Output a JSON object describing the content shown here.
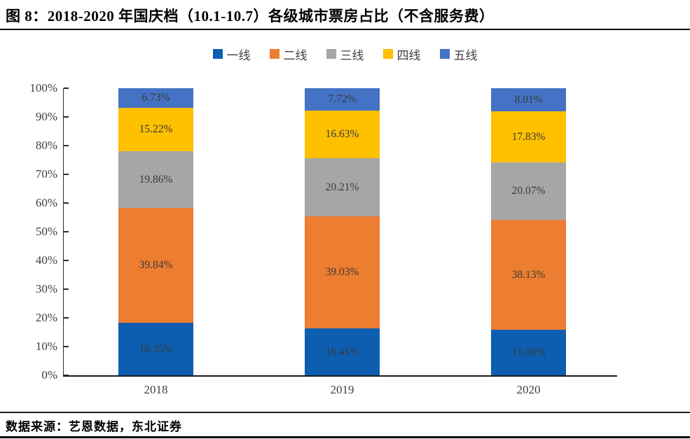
{
  "figure": {
    "title": "图 8：2018-2020 年国庆档（10.1-10.7）各级城市票房占比（不含服务费）",
    "source": "数据来源：艺恩数据，东北证券"
  },
  "chart_data": {
    "type": "bar",
    "stacked": true,
    "title": "2018-2020 年国庆档（10.1-10.7）各级城市票房占比（不含服务费）",
    "categories": [
      "2018",
      "2019",
      "2020"
    ],
    "series": [
      {
        "name": "一线",
        "color": "#0d5eb0",
        "values": [
          18.35,
          16.41,
          15.96
        ]
      },
      {
        "name": "二线",
        "color": "#ed7d31",
        "values": [
          39.84,
          39.03,
          38.13
        ]
      },
      {
        "name": "三线",
        "color": "#a6a6a6",
        "values": [
          19.86,
          20.21,
          20.07
        ]
      },
      {
        "name": "四线",
        "color": "#ffc000",
        "values": [
          15.22,
          16.63,
          17.83
        ]
      },
      {
        "name": "五线",
        "color": "#4472c4",
        "values": [
          6.73,
          7.72,
          8.01
        ]
      }
    ],
    "value_suffix": "%",
    "ylim": [
      0,
      100
    ],
    "yticks": [
      "0%",
      "10%",
      "20%",
      "30%",
      "40%",
      "50%",
      "60%",
      "70%",
      "80%",
      "90%",
      "100%"
    ],
    "legend_position": "top",
    "grid": false,
    "xlabel": "",
    "ylabel": ""
  }
}
